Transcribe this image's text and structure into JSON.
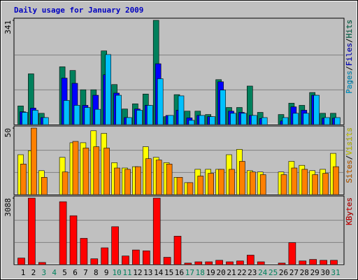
{
  "chart_data": [
    {
      "type": "bar",
      "title": "Daily usage for January 2009",
      "categories": [
        "1",
        "2",
        "3",
        "4",
        "5",
        "6",
        "7",
        "8",
        "9",
        "10",
        "11",
        "12",
        "13",
        "14",
        "15",
        "16",
        "17",
        "18",
        "19",
        "20",
        "21",
        "22",
        "23",
        "24",
        "25",
        "26",
        "27",
        "28",
        "29",
        "30",
        "31"
      ],
      "category_colors": [
        "#000000",
        "#000000",
        "#00805c",
        "#00805c",
        "#000000",
        "#000000",
        "#000000",
        "#000000",
        "#000000",
        "#00805c",
        "#00805c",
        "#000000",
        "#000000",
        "#000000",
        "#000000",
        "#000000",
        "#00805c",
        "#00805c",
        "#000000",
        "#000000",
        "#000000",
        "#000000",
        "#000000",
        "#00805c",
        "#00805c",
        "#000000",
        "#000000",
        "#000000",
        "#000000",
        "#000000",
        "#00805c"
      ],
      "legend_separator": "/",
      "ylim": [
        0,
        341
      ],
      "yticks": [
        341
      ],
      "series": [
        {
          "name": "Hits",
          "color": "#00805c",
          "values": [
            61,
            166,
            37,
            null,
            189,
            177,
            114,
            114,
            241,
            131,
            51,
            68,
            100,
            341,
            26,
            98,
            44,
            44,
            33,
            147,
            56,
            56,
            126,
            40,
            null,
            33,
            70,
            63,
            105,
            37,
            37
          ]
        },
        {
          "name": "Files",
          "color": "#0000ff",
          "values": [
            42,
            54,
            23,
            null,
            152,
            135,
            63,
            96,
            163,
            103,
            23,
            51,
            63,
            199,
            30,
            47,
            22,
            30,
            26,
            140,
            44,
            40,
            30,
            20,
            null,
            12,
            58,
            47,
            96,
            21,
            21
          ]
        },
        {
          "name": "Pages",
          "color": "#00c0ff",
          "values": [
            40,
            47,
            23,
            null,
            79,
            63,
            56,
            50,
            229,
            96,
            23,
            47,
            63,
            150,
            30,
            94,
            14,
            30,
            26,
            113,
            37,
            37,
            30,
            23,
            null,
            23,
            37,
            37,
            96,
            23,
            23
          ]
        }
      ]
    },
    {
      "type": "bar",
      "ylim": [
        0,
        50
      ],
      "yticks": [
        50
      ],
      "series": [
        {
          "name": "Visits",
          "color": "#ffff00",
          "values": [
            30,
            33,
            18,
            null,
            28,
            39,
            39,
            48,
            46,
            24,
            20,
            21,
            36,
            28,
            24,
            13,
            9,
            19,
            19,
            19,
            30,
            34,
            18,
            17,
            null,
            17,
            25,
            22,
            18,
            19,
            31
          ]
        },
        {
          "name": "Sites",
          "color": "#ff8000",
          "values": [
            23,
            50,
            13,
            null,
            17,
            40,
            35,
            36,
            35,
            20,
            19,
            21,
            27,
            26,
            23,
            13,
            9,
            14,
            16,
            19,
            19,
            25,
            17,
            15,
            null,
            15,
            20,
            19,
            15,
            16,
            21
          ]
        }
      ]
    },
    {
      "type": "bar",
      "ylim": [
        0,
        3088
      ],
      "yticks": [
        3088
      ],
      "series": [
        {
          "name": "KBytes",
          "color": "#ff0000",
          "values": [
            305,
            3088,
            100,
            null,
            2920,
            2270,
            1220,
            270,
            780,
            1760,
            400,
            680,
            640,
            3088,
            340,
            1320,
            70,
            130,
            130,
            200,
            130,
            170,
            440,
            130,
            null,
            70,
            1020,
            170,
            240,
            200,
            200
          ]
        }
      ]
    }
  ]
}
